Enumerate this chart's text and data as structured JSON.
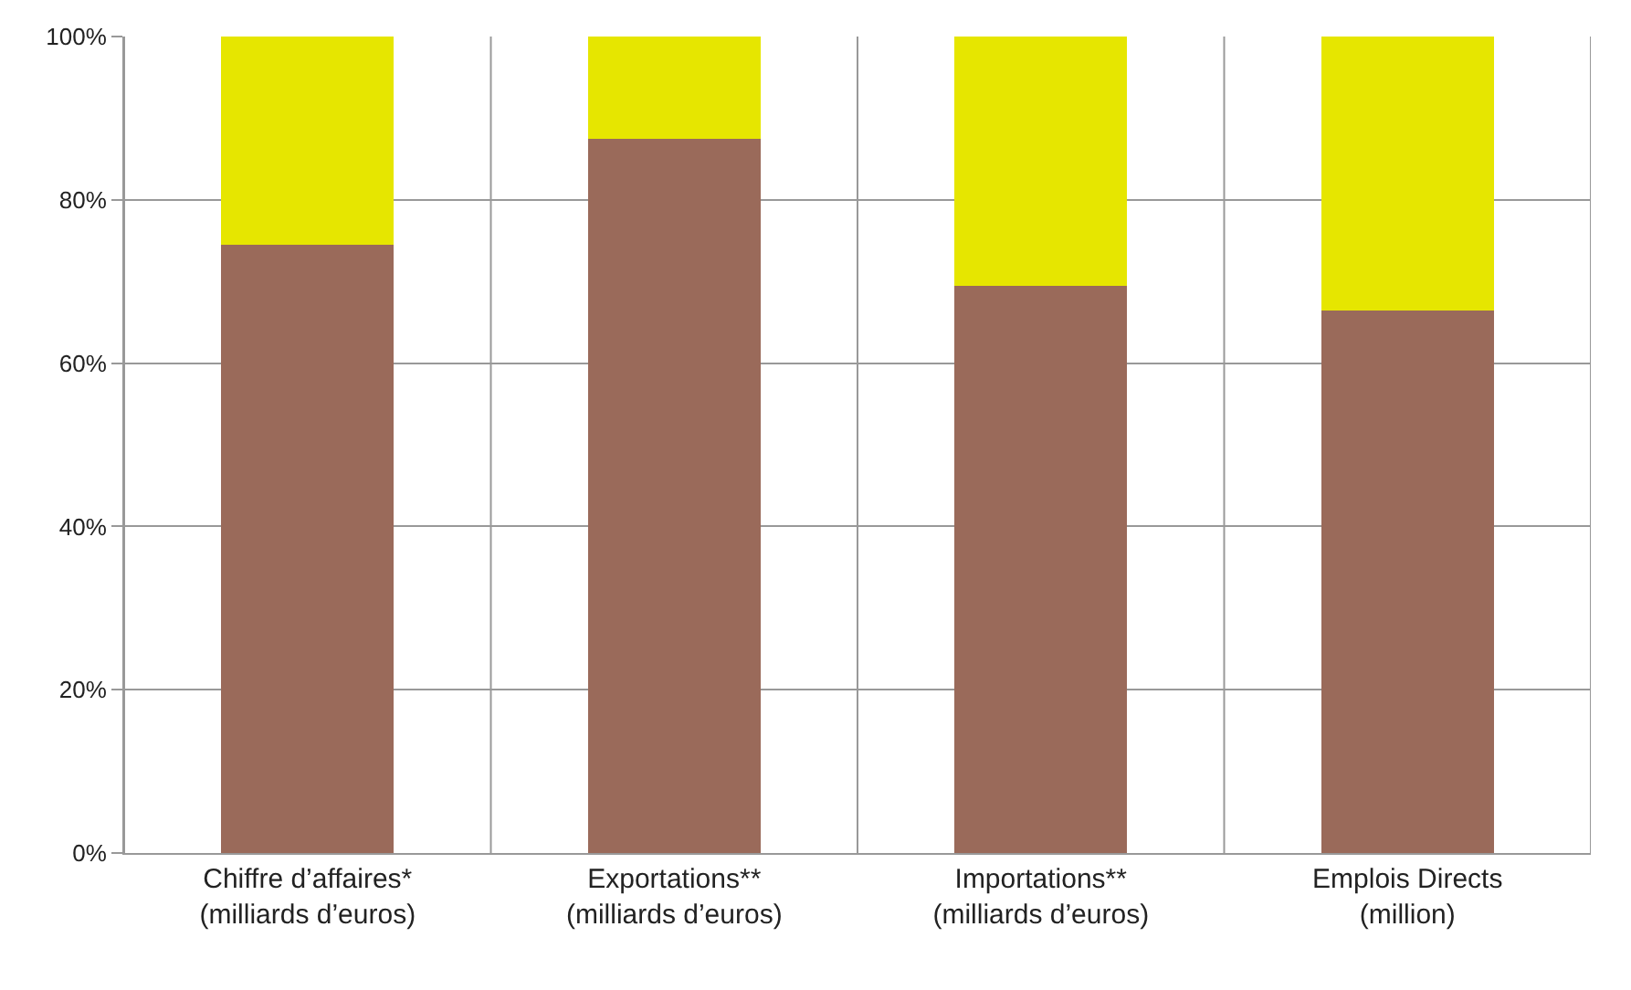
{
  "chart_data": {
    "type": "bar",
    "stacked": true,
    "categories": [
      "Chiffre d’affaires*\n(milliards d’euros)",
      "Exportations**\n(milliards d’euros)",
      "Importations**\n(milliards d’euros)",
      "Emplois Directs\n(million)"
    ],
    "series": [
      {
        "color": "#9a6a5a",
        "values": [
          74.5,
          87.5,
          69.5,
          66.5
        ]
      },
      {
        "color": "#e6e600",
        "values": [
          25.5,
          12.5,
          30.5,
          33.5
        ]
      }
    ],
    "ylim": [
      0,
      100
    ],
    "yticks": [
      {
        "value": 0,
        "label": "0%"
      },
      {
        "value": 20,
        "label": "20%"
      },
      {
        "value": 40,
        "label": "40%"
      },
      {
        "value": 60,
        "label": "60%"
      },
      {
        "value": 80,
        "label": "80%"
      },
      {
        "value": 100,
        "label": "100%"
      }
    ],
    "grid": true
  }
}
